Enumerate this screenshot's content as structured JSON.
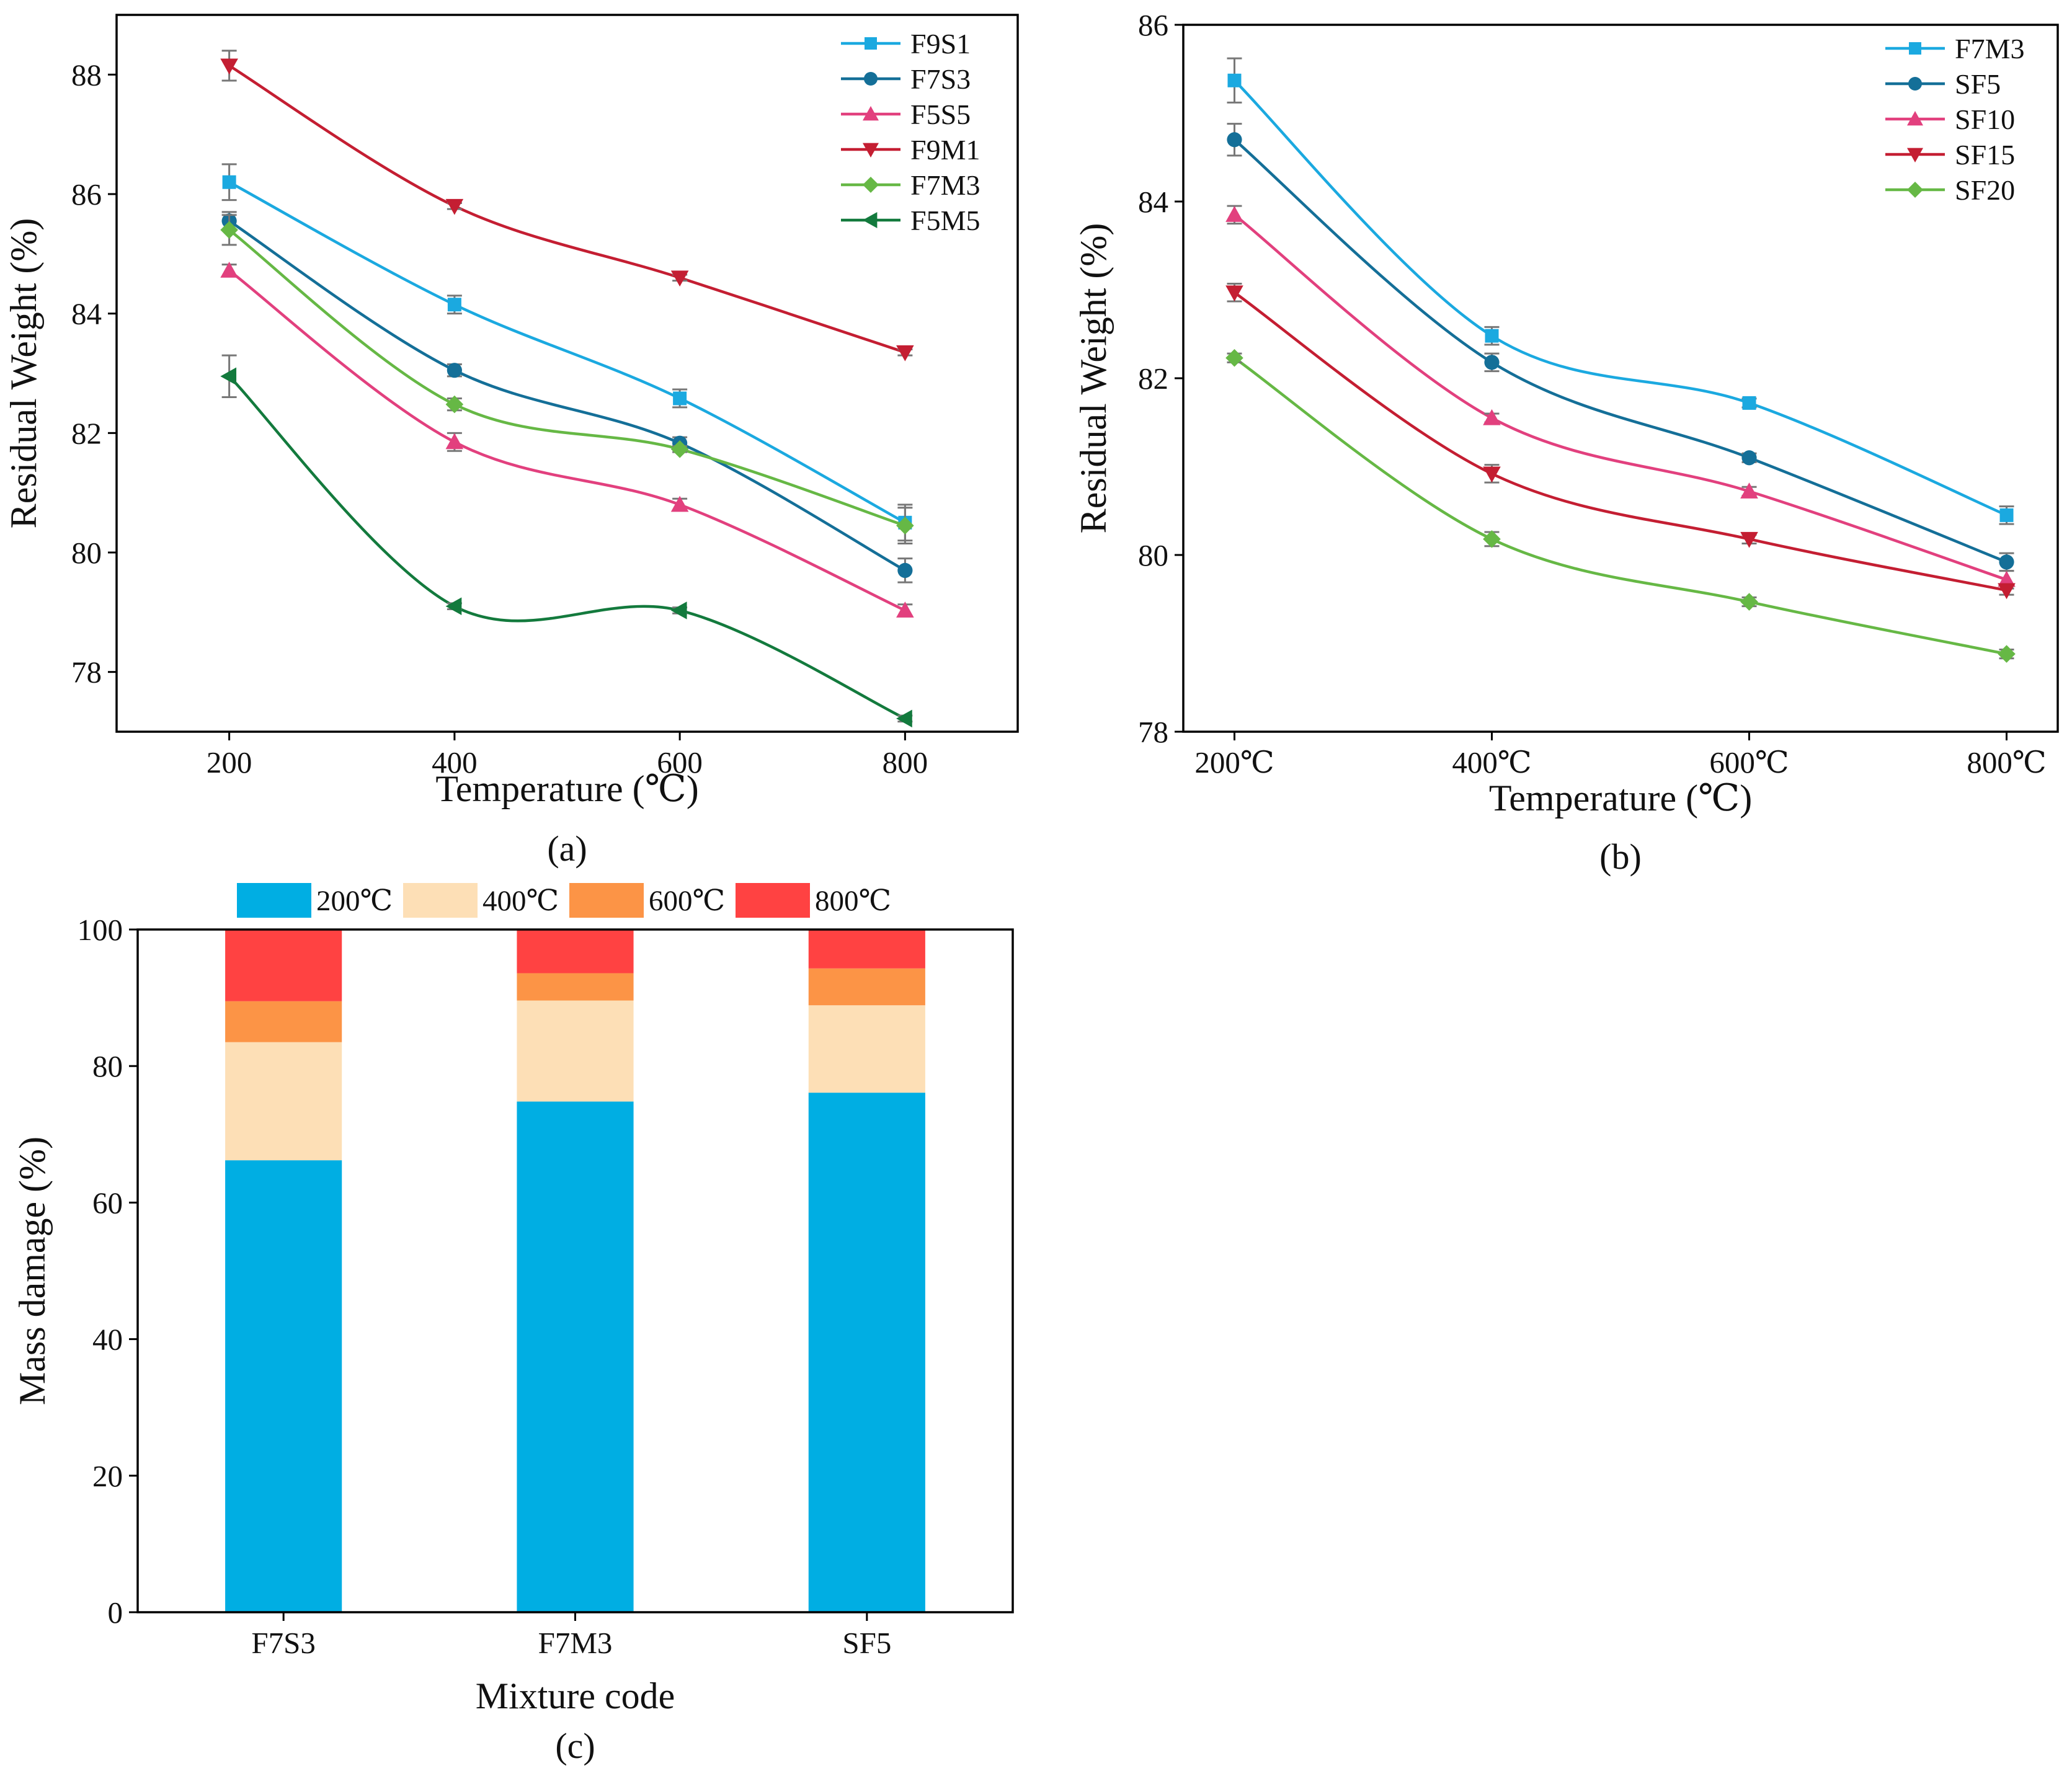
{
  "chart_data": [
    {
      "panel_label": "(a)",
      "type": "line",
      "xlabel": "Temperature (℃)",
      "ylabel": "Residual Weight (%)",
      "x": [
        200,
        400,
        600,
        800
      ],
      "x_tick_labels": [
        "200",
        "400",
        "600",
        "800"
      ],
      "xlim": [
        100,
        900
      ],
      "ylim": [
        77,
        89
      ],
      "y_ticks": [
        78,
        80,
        82,
        84,
        86,
        88
      ],
      "legend_position": "top-right",
      "grid": false,
      "series": [
        {
          "name": "F9S1",
          "marker": "square",
          "color": "#1BA9E0",
          "values": [
            86.2,
            84.15,
            82.58,
            80.5
          ],
          "errors": [
            0.3,
            0.15,
            0.15,
            0.3
          ]
        },
        {
          "name": "F7S3",
          "marker": "circle",
          "color": "#146F98",
          "values": [
            85.55,
            83.05,
            81.83,
            79.7
          ],
          "errors": [
            0.15,
            0.1,
            0.1,
            0.2
          ]
        },
        {
          "name": "F5S5",
          "marker": "triangle-up",
          "color": "#E2407E",
          "values": [
            84.72,
            81.85,
            80.8,
            79.03
          ],
          "errors": [
            0.1,
            0.15,
            0.1,
            0.1
          ]
        },
        {
          "name": "F9M1",
          "marker": "triangle-down",
          "color": "#C41E32",
          "values": [
            88.15,
            85.8,
            84.6,
            83.35
          ],
          "errors": [
            0.25,
            0.05,
            0.05,
            0.05
          ]
        },
        {
          "name": "F7M3",
          "marker": "diamond",
          "color": "#66B845",
          "values": [
            85.4,
            82.48,
            81.73,
            80.45
          ],
          "errors": [
            0.25,
            0.1,
            0.05,
            0.3
          ]
        },
        {
          "name": "F5M5",
          "marker": "triangle-left",
          "color": "#137A3D",
          "values": [
            82.95,
            79.1,
            79.03,
            77.22
          ],
          "errors": [
            0.35,
            0.05,
            0.05,
            0.05
          ]
        }
      ]
    },
    {
      "panel_label": "(b)",
      "type": "line",
      "xlabel": "Temperature (℃)",
      "ylabel": "Residual Weight (%)",
      "categories": [
        "200℃",
        "400℃",
        "600℃",
        "800℃"
      ],
      "ylim": [
        78,
        86
      ],
      "y_ticks": [
        78,
        80,
        82,
        84,
        86
      ],
      "legend_position": "top-right",
      "grid": false,
      "series": [
        {
          "name": "F7M3",
          "marker": "square",
          "color": "#1BA9E0",
          "values": [
            85.37,
            82.48,
            81.72,
            80.45
          ],
          "errors": [
            0.25,
            0.1,
            0.05,
            0.1
          ]
        },
        {
          "name": "SF5",
          "marker": "circle",
          "color": "#146F98",
          "values": [
            84.7,
            82.18,
            81.1,
            79.92
          ],
          "errors": [
            0.18,
            0.1,
            0.05,
            0.1
          ]
        },
        {
          "name": "SF10",
          "marker": "triangle-up",
          "color": "#E2407E",
          "values": [
            83.85,
            81.55,
            80.72,
            79.72
          ],
          "errors": [
            0.1,
            0.05,
            0.05,
            0.1
          ]
        },
        {
          "name": "SF15",
          "marker": "triangle-down",
          "color": "#C41E32",
          "values": [
            82.97,
            80.92,
            80.18,
            79.6
          ],
          "errors": [
            0.1,
            0.1,
            0.05,
            0.05
          ]
        },
        {
          "name": "SF20",
          "marker": "diamond",
          "color": "#66B845",
          "values": [
            82.23,
            80.18,
            79.47,
            78.88
          ],
          "errors": [
            0.05,
            0.08,
            0.05,
            0.05
          ]
        }
      ]
    },
    {
      "panel_label": "(c)",
      "type": "bar",
      "stacked": true,
      "xlabel": "Mixture code",
      "ylabel": "Mass damage (%)",
      "categories": [
        "F7S3",
        "F7M3",
        "SF5"
      ],
      "ylim": [
        0,
        100
      ],
      "y_ticks": [
        0,
        20,
        40,
        60,
        80,
        100
      ],
      "legend_position": "top",
      "grid": false,
      "series": [
        {
          "name": "200℃",
          "color": "#00AEE3",
          "values": [
            66.2,
            74.8,
            76.1
          ]
        },
        {
          "name": "400℃",
          "color": "#FDDFB6",
          "values": [
            17.3,
            14.8,
            12.8
          ]
        },
        {
          "name": "600℃",
          "color": "#FC9446",
          "values": [
            6.0,
            4.0,
            5.4
          ]
        },
        {
          "name": "800℃",
          "color": "#FF4242",
          "values": [
            10.5,
            6.4,
            5.7
          ]
        }
      ]
    }
  ]
}
